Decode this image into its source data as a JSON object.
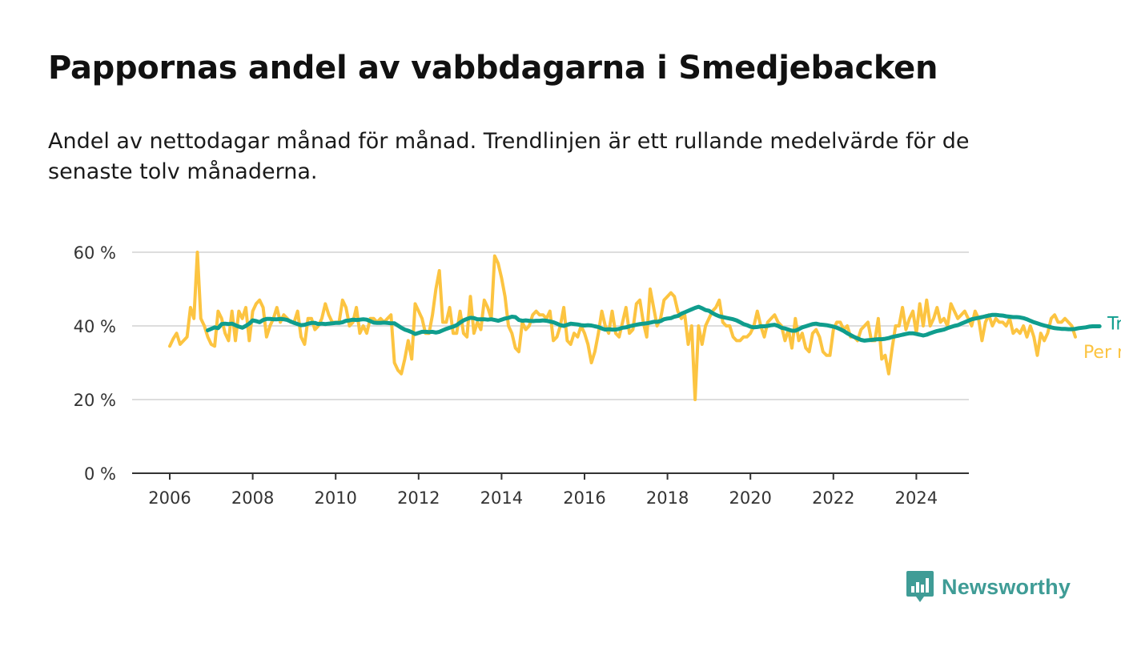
{
  "chart_data": {
    "type": "line",
    "title": "Pappornas andel av vabbdagarna i Smedjebacken",
    "subtitle": "Andel av nettodagar månad för månad. Trendlinjen är ett rullande medelvärde för de senaste tolv månaderna.",
    "xlabel": "",
    "ylabel": "",
    "x_start": "2006-01",
    "x_ticks": [
      "2006",
      "2008",
      "2010",
      "2012",
      "2014",
      "2016",
      "2018",
      "2020",
      "2022",
      "2024"
    ],
    "y_ticks": [
      "0 %",
      "20 %",
      "40 %",
      "60 %"
    ],
    "ylim": [
      0,
      60
    ],
    "grid": true,
    "series": [
      {
        "name": "Per månad",
        "color": "#fcc441",
        "values": [
          34.5,
          36.5,
          38,
          35,
          36,
          37,
          45,
          42,
          60,
          42,
          40,
          37,
          35,
          34.5,
          44,
          42,
          38,
          36,
          44,
          36,
          44,
          42,
          45,
          36,
          44,
          46,
          47,
          45,
          37,
          40,
          42,
          45,
          41,
          43,
          42,
          41,
          41,
          44,
          37,
          35,
          42,
          42,
          39,
          40,
          42,
          46,
          43,
          41,
          41,
          41,
          47,
          45,
          40,
          41,
          45,
          38,
          40,
          38,
          42,
          42,
          41,
          42,
          41,
          42,
          43,
          30,
          28,
          27,
          31,
          36,
          31,
          46,
          44,
          42,
          38,
          38,
          43,
          50,
          55,
          41,
          41,
          45,
          38,
          38,
          44,
          38,
          37,
          48,
          38,
          41,
          39,
          47,
          45,
          42,
          59,
          57,
          53,
          48,
          40,
          38,
          34,
          33,
          41,
          39,
          40,
          43,
          44,
          43,
          43,
          42,
          44,
          36,
          37,
          40,
          45,
          36,
          35,
          38,
          37,
          40,
          38,
          35,
          30,
          33,
          38,
          44,
          40,
          38,
          44,
          38,
          37,
          41,
          45,
          38,
          39,
          46,
          47,
          41,
          37,
          50,
          45,
          40,
          42,
          47,
          48,
          49,
          48,
          44,
          42,
          43,
          35,
          40,
          20,
          40,
          35,
          40,
          42,
          44,
          45,
          47,
          41,
          40,
          40,
          37,
          36,
          36,
          37,
          37,
          38,
          40,
          44,
          40,
          37,
          41,
          42,
          43,
          41,
          40,
          36,
          39,
          34,
          42,
          36,
          38,
          34,
          33,
          38,
          39,
          37,
          33,
          32,
          32,
          39,
          41,
          41,
          39,
          40,
          37,
          37,
          36,
          39,
          40,
          41,
          36,
          36,
          42,
          31,
          32,
          27,
          34,
          40,
          40,
          45,
          39,
          42,
          44,
          38,
          46,
          40,
          47,
          40,
          42,
          45,
          41,
          42,
          40,
          46,
          44,
          42,
          43,
          44,
          42,
          40,
          44,
          42,
          36,
          41,
          43,
          40,
          42,
          41,
          41,
          40,
          42,
          38,
          39,
          38,
          40,
          37,
          40,
          37,
          32,
          38,
          36,
          38,
          42,
          43,
          41,
          41,
          42,
          41,
          40,
          37
        ]
      },
      {
        "name": "Trend",
        "color": "#0f9d8d",
        "start": "2006-12",
        "values": [
          38.8,
          39.2,
          39.6,
          39.4,
          40.5,
          40.6,
          40.5,
          40.6,
          40.2,
          39.8,
          39.5,
          40.0,
          40.6,
          41.5,
          41.3,
          41.0,
          41.6,
          41.9,
          41.9,
          41.8,
          41.8,
          41.9,
          41.8,
          41.6,
          41.2,
          40.8,
          40.5,
          40.2,
          40.3,
          40.6,
          40.8,
          40.8,
          40.5,
          40.6,
          40.5,
          40.6,
          40.7,
          40.8,
          40.8,
          41.0,
          41.4,
          41.5,
          41.7,
          41.6,
          41.7,
          41.8,
          41.7,
          41.3,
          40.9,
          40.8,
          40.8,
          40.9,
          40.8,
          40.7,
          40.7,
          40.1,
          39.5,
          39.0,
          38.7,
          38.3,
          37.8,
          38.1,
          38.4,
          38.4,
          38.3,
          38.4,
          38.2,
          38.4,
          38.8,
          39.2,
          39.5,
          39.8,
          40.2,
          40.9,
          41.5,
          41.9,
          42.2,
          42.1,
          41.8,
          41.8,
          41.8,
          41.7,
          41.8,
          41.6,
          41.4,
          41.7,
          42.0,
          42.2,
          42.5,
          42.4,
          41.6,
          41.4,
          41.5,
          41.4,
          41.3,
          41.4,
          41.4,
          41.5,
          41.4,
          41.2,
          41.0,
          40.6,
          40.2,
          40.0,
          40.3,
          40.6,
          40.5,
          40.4,
          40.2,
          40.1,
          40.2,
          40.1,
          39.9,
          39.7,
          39.3,
          39.0,
          39.1,
          39.0,
          39.0,
          39.2,
          39.5,
          39.6,
          39.9,
          40.1,
          40.3,
          40.5,
          40.6,
          40.7,
          40.9,
          41.1,
          41.1,
          41.3,
          41.8,
          42.0,
          42.1,
          42.5,
          42.7,
          43.3,
          43.7,
          44.1,
          44.5,
          44.9,
          45.2,
          44.8,
          44.3,
          44.1,
          43.5,
          43.0,
          42.6,
          42.4,
          42.2,
          42.0,
          41.8,
          41.5,
          41.0,
          40.5,
          40.2,
          39.8,
          39.6,
          39.7,
          39.9,
          39.9,
          40.0,
          40.2,
          40.3,
          40.0,
          39.5,
          39.3,
          39.0,
          38.7,
          38.7,
          39.1,
          39.6,
          39.9,
          40.2,
          40.5,
          40.6,
          40.4,
          40.3,
          40.2,
          40.0,
          39.8,
          39.5,
          39.1,
          38.6,
          38.0,
          37.5,
          37.0,
          36.6,
          36.2,
          36.0,
          36.1,
          36.2,
          36.3,
          36.4,
          36.4,
          36.5,
          36.7,
          37.0,
          37.2,
          37.4,
          37.6,
          37.8,
          38.0,
          38.0,
          37.8,
          37.6,
          37.4,
          37.6,
          38.0,
          38.3,
          38.6,
          38.8,
          39.0,
          39.4,
          39.7,
          40.0,
          40.2,
          40.6,
          41.0,
          41.4,
          41.8,
          42.0,
          42.2,
          42.4,
          42.6,
          42.8,
          43.0,
          43.0,
          42.9,
          42.8,
          42.6,
          42.5,
          42.4,
          42.4,
          42.3,
          42.1,
          41.8,
          41.4,
          41.0,
          40.7,
          40.4,
          40.1,
          39.9,
          39.6,
          39.4,
          39.3,
          39.2,
          39.2,
          39.1,
          39.1,
          39.2,
          39.4,
          39.5,
          39.6,
          39.8,
          39.9,
          39.9,
          39.9
        ]
      }
    ]
  },
  "brand": {
    "name": "Newsworthy",
    "icon": "newsworthy-logo-icon",
    "color": "#3f9c96"
  }
}
